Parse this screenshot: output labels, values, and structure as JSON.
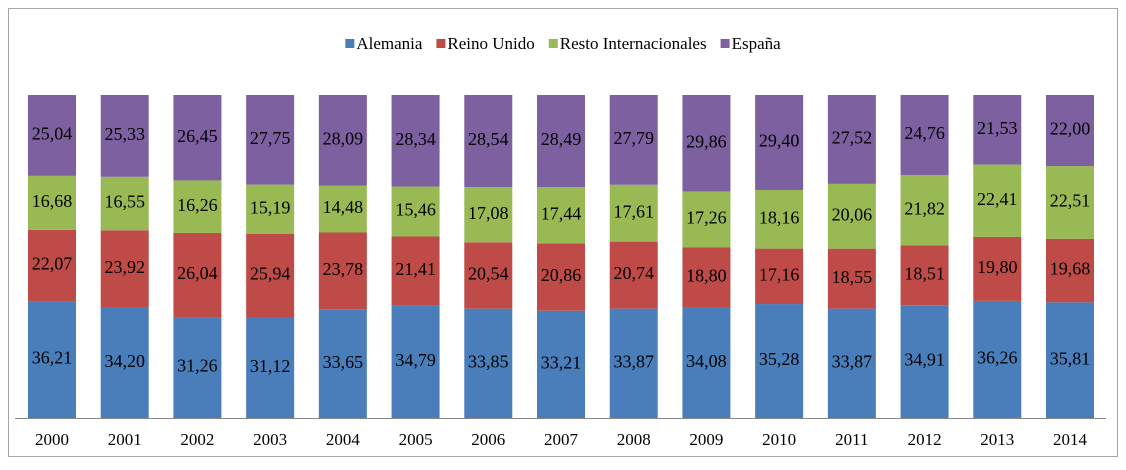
{
  "chart_data": {
    "type": "stacked_bar",
    "categories": [
      "2000",
      "2001",
      "2002",
      "2003",
      "2004",
      "2005",
      "2006",
      "2007",
      "2008",
      "2009",
      "2010",
      "2011",
      "2012",
      "2013",
      "2014"
    ],
    "series": [
      {
        "name": "Alemania",
        "color": "#4a7ebb",
        "values": [
          36.21,
          34.2,
          31.26,
          31.12,
          33.65,
          34.79,
          33.85,
          33.21,
          33.87,
          34.08,
          35.28,
          33.87,
          34.91,
          36.26,
          35.81
        ],
        "value_labels": [
          "36,21",
          "34,20",
          "31,26",
          "31,12",
          "33,65",
          "34,79",
          "33,85",
          "33,21",
          "33,87",
          "34,08",
          "35,28",
          "33,87",
          "34,91",
          "36,26",
          "35,81"
        ]
      },
      {
        "name": "Reino Unido",
        "color": "#be4b48",
        "values": [
          22.07,
          23.92,
          26.04,
          25.94,
          23.78,
          21.41,
          20.54,
          20.86,
          20.74,
          18.8,
          17.16,
          18.55,
          18.51,
          19.8,
          19.68
        ],
        "value_labels": [
          "22,07",
          "23,92",
          "26,04",
          "25,94",
          "23,78",
          "21,41",
          "20,54",
          "20,86",
          "20,74",
          "18,80",
          "17,16",
          "18,55",
          "18,51",
          "19,80",
          "19,68"
        ]
      },
      {
        "name": "Resto Internacionales",
        "color": "#98b954",
        "values": [
          16.68,
          16.55,
          16.26,
          15.19,
          14.48,
          15.46,
          17.08,
          17.44,
          17.61,
          17.26,
          18.16,
          20.06,
          21.82,
          22.41,
          22.51
        ],
        "value_labels": [
          "16,68",
          "16,55",
          "16,26",
          "15,19",
          "14,48",
          "15,46",
          "17,08",
          "17,44",
          "17,61",
          "17,26",
          "18,16",
          "20,06",
          "21,82",
          "22,41",
          "22,51"
        ]
      },
      {
        "name": "España",
        "color": "#7d60a0",
        "values": [
          25.04,
          25.33,
          26.45,
          27.75,
          28.09,
          28.34,
          28.54,
          28.49,
          27.79,
          29.86,
          29.4,
          27.52,
          24.76,
          21.53,
          22.0
        ],
        "value_labels": [
          "25,04",
          "25,33",
          "26,45",
          "27,75",
          "28,09",
          "28,34",
          "28,54",
          "28,49",
          "27,79",
          "29,86",
          "29,40",
          "27,52",
          "24,76",
          "21,53",
          "22,00"
        ]
      }
    ]
  }
}
